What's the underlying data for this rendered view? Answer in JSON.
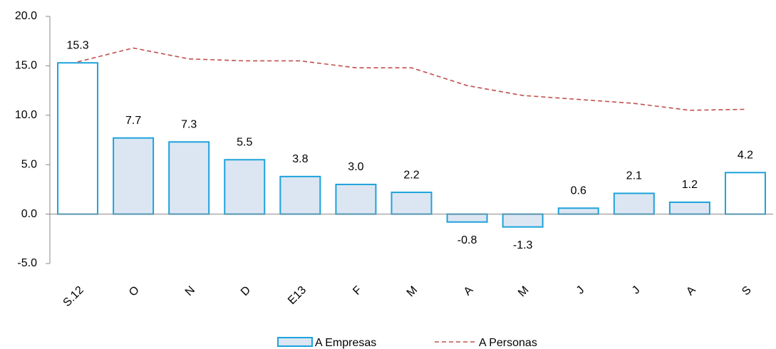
{
  "chart_data": {
    "type": "bar",
    "categories": [
      "S.12",
      "O",
      "N",
      "D",
      "E13",
      "F",
      "M",
      "A",
      "M",
      "J",
      "J",
      "A",
      "S"
    ],
    "series": [
      {
        "name": "A Empresas",
        "type": "bar",
        "color": "#1ca3dc",
        "fills": [
          "#ffffff",
          "#dce6f2",
          "#dce6f2",
          "#dce6f2",
          "#dce6f2",
          "#dce6f2",
          "#dce6f2",
          "#dce6f2",
          "#dce6f2",
          "#dce6f2",
          "#dce6f2",
          "#dce6f2",
          "#ffffff"
        ],
        "values": [
          15.3,
          7.7,
          7.3,
          5.5,
          3.8,
          3.0,
          2.2,
          -0.8,
          -1.3,
          0.6,
          2.1,
          1.2,
          4.2
        ],
        "value_labels": [
          "15.3",
          "7.7",
          "7.3",
          "5.5",
          "3.8",
          "3.0",
          "2.2",
          "-0.8",
          "-1.3",
          "0.6",
          "2.1",
          "1.2",
          "4.2"
        ]
      },
      {
        "name": "A Personas",
        "type": "line",
        "color": "#c0504d",
        "dashed": true,
        "values": [
          15.4,
          16.8,
          15.7,
          15.5,
          15.5,
          14.8,
          14.8,
          13.0,
          12.0,
          11.6,
          11.2,
          10.5,
          10.6
        ]
      }
    ],
    "ylim": [
      -5,
      20
    ],
    "yticks": [
      {
        "value": -5,
        "label": "-5.0"
      },
      {
        "value": 0,
        "label": "0.0"
      },
      {
        "value": 5,
        "label": "5.0"
      },
      {
        "value": 10,
        "label": "10.0"
      },
      {
        "value": 15,
        "label": "15.0"
      },
      {
        "value": 20,
        "label": "20.0"
      }
    ],
    "legend": "bottom"
  }
}
